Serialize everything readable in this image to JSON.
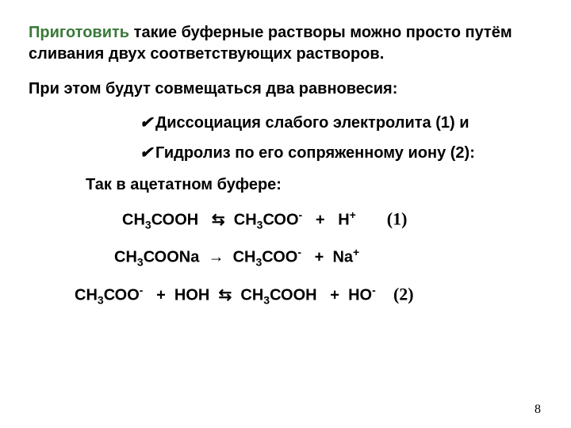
{
  "intro": {
    "lead": "Приготовить",
    "rest": " такие буферные растворы можно просто путём сливания двух соответствующих растворов."
  },
  "line1": "При этом будут совмещаться два равновесия:",
  "bullets": {
    "b1": "Диссоциация слабого электролита (1) и",
    "b2": "Гидролиз по его сопряженному иону (2):"
  },
  "subhead": "Так в ацетатном буфере:",
  "equations": {
    "eq1": {
      "lhs_a": "СН",
      "lhs_sub": "3",
      "lhs_b": "СООН",
      "arrow": "⇆",
      "rhs_a": "СН",
      "rhs_sub": "3",
      "rhs_b": "СОО",
      "rhs_sup": "-",
      "plus": "+",
      "h": "Н",
      "h_sup": "+",
      "label": "(1)"
    },
    "eq2": {
      "lhs_a": "СН",
      "lhs_sub": "3",
      "lhs_b": "СООNa",
      "arrow": "→",
      "rhs_a": "СН",
      "rhs_sub": "3",
      "rhs_b": "СОО",
      "rhs_sup": "-",
      "plus": "+",
      "na": "Na",
      "na_sup": "+"
    },
    "eq3": {
      "lhs_a": "СН",
      "lhs_sub": "3",
      "lhs_b": "СОО",
      "lhs_sup": "-",
      "plus1": "+",
      "hoh": "НОН",
      "arrow": "⇆",
      "rhs_a": "СН",
      "rhs_sub": "3",
      "rhs_b": "СООН",
      "plus2": "+",
      "ho": "НО",
      "ho_sup": "-",
      "label": "(2)"
    }
  },
  "pagenum": "8"
}
